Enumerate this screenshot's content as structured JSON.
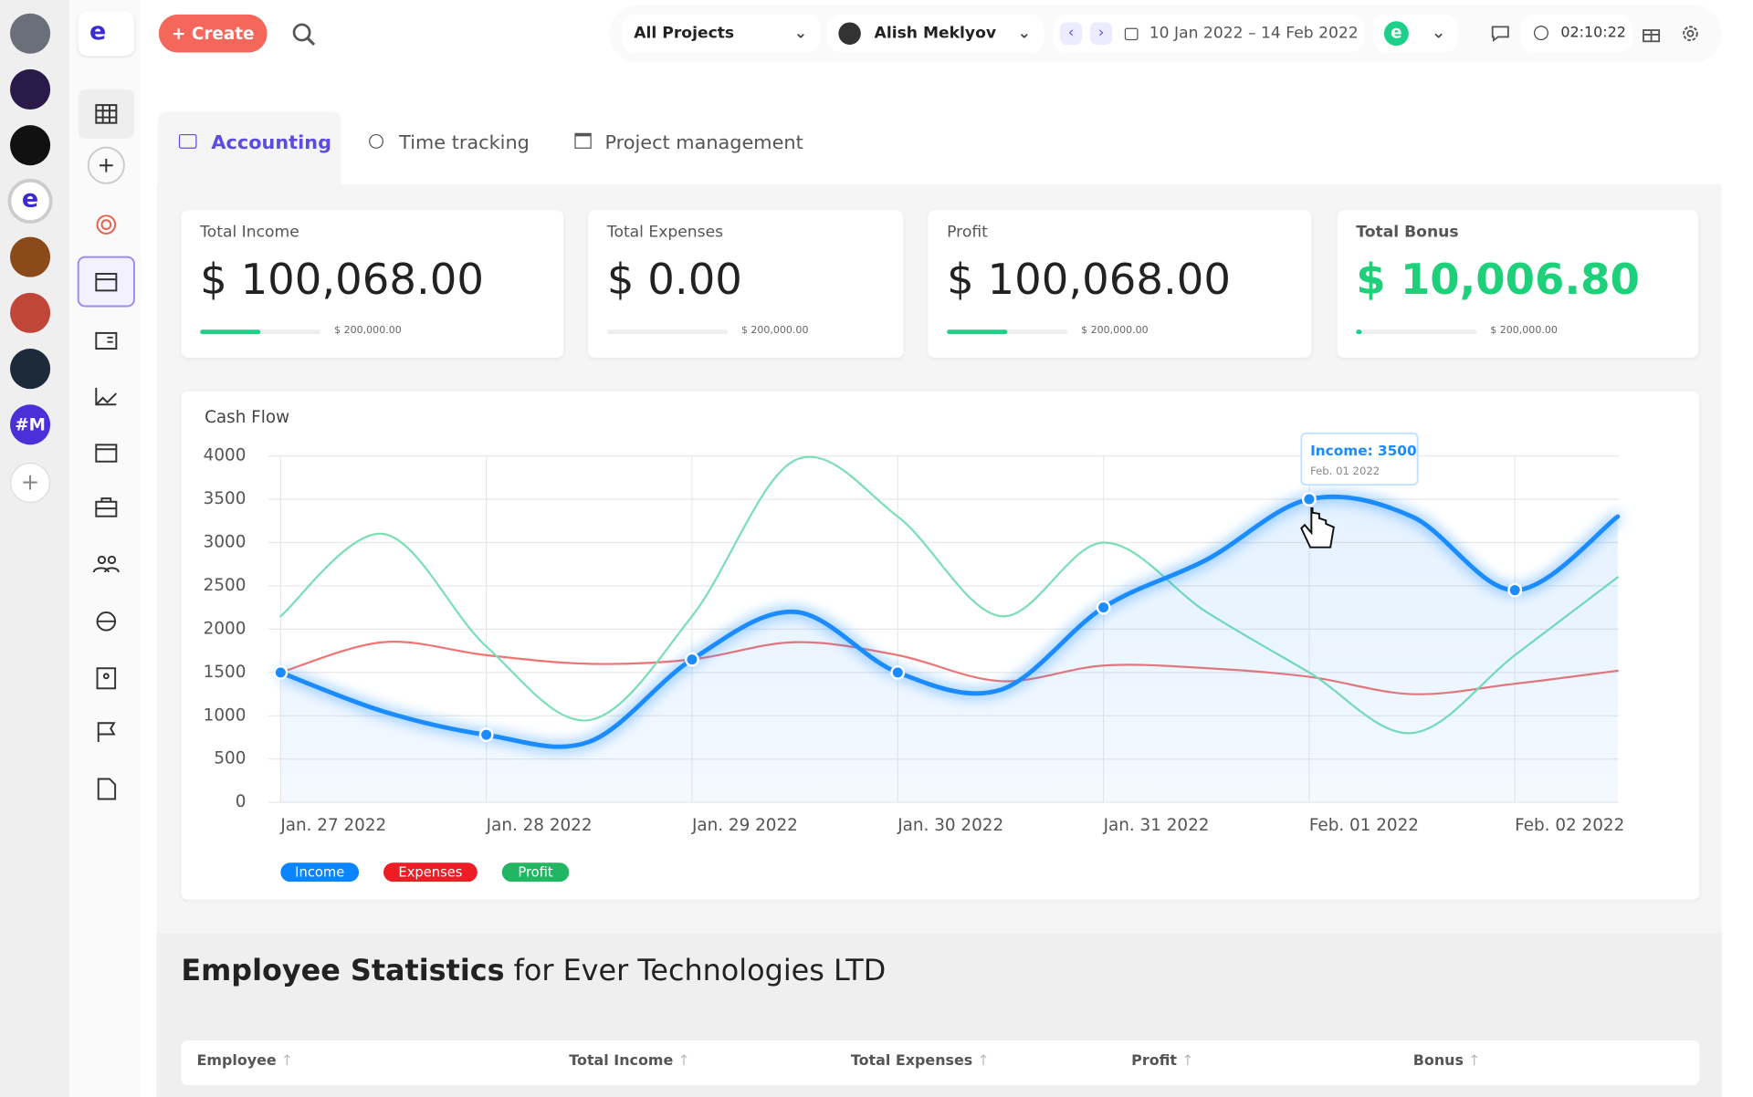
{
  "header": {
    "logo": "e",
    "create": "Create",
    "project": "All Projects",
    "user": "Alish Meklyov",
    "date_range": "10 Jan 2022 – 14 Feb 2022",
    "timer": "02:10:22"
  },
  "workspaces": {
    "badge": "#M"
  },
  "tabs": [
    "Accounting",
    "Time tracking",
    "Project management"
  ],
  "cards": [
    {
      "label": "Total Income",
      "value": "$ 100,068.00",
      "progress": 50,
      "limit": "$ 200,000.00"
    },
    {
      "label": "Total Expenses",
      "value": "$ 0.00",
      "progress": 0,
      "limit": "$ 200,000.00"
    },
    {
      "label": "Profit",
      "value": "$ 100,068.00",
      "progress": 50,
      "limit": "$ 200,000.00"
    },
    {
      "label": "Total Bonus",
      "value": "$ 10,006.80",
      "progress": 5,
      "limit": "$ 200,000.00"
    }
  ],
  "chart_data": {
    "type": "line",
    "title": "Cash Flow",
    "categories": [
      "Jan. 27 2022",
      null,
      "Jan. 28 2022",
      null,
      "Jan. 29 2022",
      null,
      "Jan. 30 2022",
      null,
      "Jan. 31 2022",
      null,
      "Feb. 01 2022",
      null,
      "Feb. 02 2022",
      null
    ],
    "series": [
      {
        "name": "Income",
        "color": "#1a8cff",
        "legend_color": "#0a84ff",
        "values": [
          1500,
          1050,
          780,
          700,
          1650,
          2200,
          1500,
          1300,
          2250,
          2800,
          3500,
          3300,
          2450,
          3300
        ]
      },
      {
        "name": "Expenses",
        "color": "#ef7575",
        "legend_color": "#ee1c25",
        "values": [
          1500,
          1850,
          1700,
          1600,
          1650,
          1850,
          1700,
          1400,
          1580,
          1550,
          1450,
          1250,
          1370,
          1520
        ]
      },
      {
        "name": "Profit",
        "color": "#7adfb5",
        "legend_color": "#22b562",
        "values": [
          2150,
          3100,
          1800,
          950,
          2150,
          3950,
          3300,
          2150,
          3000,
          2200,
          1500,
          800,
          1700,
          2600
        ]
      }
    ],
    "ylim": [
      0,
      4000
    ],
    "yticks": [
      0,
      500,
      1000,
      1500,
      2000,
      2500,
      3000,
      3500,
      4000
    ],
    "grid": true,
    "tooltip": {
      "text": "Income: 3500",
      "date": "Feb. 01 2022"
    }
  },
  "employee_statistics": {
    "title": "Employee Statistics",
    "subtitle": "for Ever Technologies LTD",
    "columns": [
      "Employee",
      "Total Income",
      "Total Expenses",
      "Profit",
      "Bonus"
    ]
  }
}
